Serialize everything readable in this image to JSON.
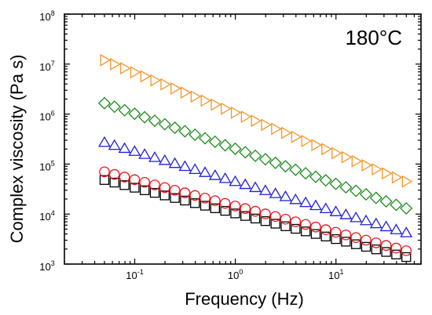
{
  "chart_data": {
    "type": "scatter",
    "title": "",
    "annotation": "180°C",
    "xlabel": "Frequency (Hz)",
    "ylabel": "Complex viscosity (Pa s)",
    "xscale": "log",
    "yscale": "log",
    "xlim": [
      0.02,
      70
    ],
    "ylim": [
      1000,
      100000000
    ],
    "x_ticks": [
      {
        "value": 0.1,
        "base": "10",
        "exp": "-1"
      },
      {
        "value": 1,
        "base": "10",
        "exp": "0"
      },
      {
        "value": 10,
        "base": "10",
        "exp": "1"
      }
    ],
    "y_ticks": [
      {
        "value": 1000,
        "base": "10",
        "exp": "3"
      },
      {
        "value": 10000,
        "base": "10",
        "exp": "4"
      },
      {
        "value": 100000,
        "base": "10",
        "exp": "5"
      },
      {
        "value": 1000000,
        "base": "10",
        "exp": "6"
      },
      {
        "value": 10000000,
        "base": "10",
        "exp": "7"
      },
      {
        "value": 100000000,
        "base": "10",
        "exp": "8"
      }
    ],
    "grid": false,
    "legend": "none",
    "x": [
      0.05,
      0.0629,
      0.0792,
      0.0997,
      0.1255,
      0.158,
      0.1989,
      0.2504,
      0.3152,
      0.3968,
      0.4995,
      0.6288,
      0.7916,
      0.9966,
      1.2546,
      1.5794,
      1.9883,
      2.5031,
      3.1511,
      3.9669,
      4.994,
      6.287,
      7.915,
      9.964,
      12.544,
      15.79,
      19.88,
      25.03,
      31.51,
      39.66,
      49.93
    ],
    "series": [
      {
        "marker": "square",
        "color": "#000000",
        "start": 48000,
        "end": 1380
      },
      {
        "marker": "circle",
        "color": "#e8141b",
        "start": 70000,
        "end": 1850
      },
      {
        "marker": "triangle-up",
        "color": "#1f1fd6",
        "start": 270000,
        "end": 4200
      },
      {
        "marker": "diamond",
        "color": "#1e8a1e",
        "start": 1650000,
        "end": 13000
      },
      {
        "marker": "triangle-right",
        "color": "#f2962a",
        "start": 12000000,
        "end": 45000
      }
    ]
  }
}
